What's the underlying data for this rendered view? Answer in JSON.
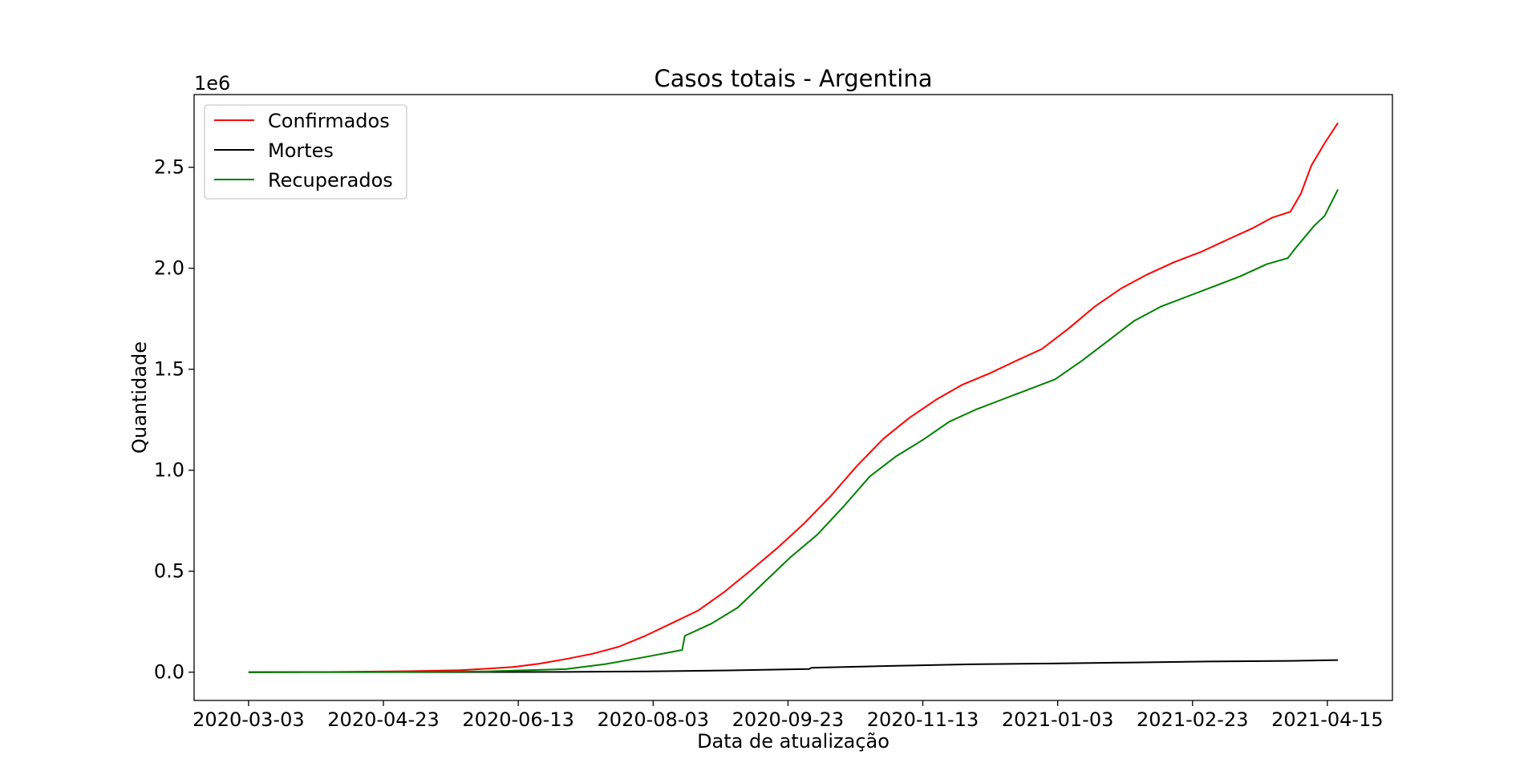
{
  "chart_data": {
    "type": "line",
    "title": "Casos totais - Argentina",
    "xlabel": "Data de atualização",
    "ylabel": "Quantidade",
    "y_offset_text": "1e6",
    "x_start": "2020-03-03",
    "x_end": "2021-04-19",
    "x_ticks": [
      "2020-03-03",
      "2020-04-23",
      "2020-06-13",
      "2020-08-03",
      "2020-09-23",
      "2020-11-13",
      "2021-01-03",
      "2021-02-23",
      "2021-04-15"
    ],
    "y_ticks": [
      "0.0",
      "0.5",
      "1.0",
      "1.5",
      "2.0",
      "2.5"
    ],
    "ylim": [
      -0.14,
      2.86
    ],
    "grid": false,
    "legend_position": "upper-left",
    "series": [
      {
        "name": "Confirmados",
        "color": "#ff0000",
        "points": [
          [
            "2020-03-03",
            0.0
          ],
          [
            "2020-04-02",
            0.001
          ],
          [
            "2020-05-02",
            0.005
          ],
          [
            "2020-05-22",
            0.01
          ],
          [
            "2020-06-01",
            0.017
          ],
          [
            "2020-06-11",
            0.026
          ],
          [
            "2020-06-21",
            0.042
          ],
          [
            "2020-07-01",
            0.065
          ],
          [
            "2020-07-11",
            0.091
          ],
          [
            "2020-07-21",
            0.126
          ],
          [
            "2020-07-31",
            0.18
          ],
          [
            "2020-08-10",
            0.242
          ],
          [
            "2020-08-20",
            0.305
          ],
          [
            "2020-08-30",
            0.398
          ],
          [
            "2020-09-09",
            0.505
          ],
          [
            "2020-09-19",
            0.615
          ],
          [
            "2020-09-29",
            0.735
          ],
          [
            "2020-10-09",
            0.87
          ],
          [
            "2020-10-19",
            1.02
          ],
          [
            "2020-10-29",
            1.155
          ],
          [
            "2020-11-08",
            1.26
          ],
          [
            "2020-11-18",
            1.349
          ],
          [
            "2020-11-28",
            1.424
          ],
          [
            "2020-12-08",
            1.478
          ],
          [
            "2020-12-18",
            1.54
          ],
          [
            "2020-12-28",
            1.6
          ],
          [
            "2021-01-07",
            1.7
          ],
          [
            "2021-01-17",
            1.81
          ],
          [
            "2021-01-27",
            1.9
          ],
          [
            "2021-02-06",
            1.97
          ],
          [
            "2021-02-16",
            2.03
          ],
          [
            "2021-02-26",
            2.08
          ],
          [
            "2021-03-08",
            2.14
          ],
          [
            "2021-03-18",
            2.2
          ],
          [
            "2021-03-25",
            2.25
          ],
          [
            "2021-04-01",
            2.28
          ],
          [
            "2021-04-05",
            2.37
          ],
          [
            "2021-04-09",
            2.51
          ],
          [
            "2021-04-14",
            2.62
          ],
          [
            "2021-04-19",
            2.72
          ]
        ]
      },
      {
        "name": "Mortes",
        "color": "#000000",
        "points": [
          [
            "2020-03-03",
            0.0
          ],
          [
            "2020-05-02",
            0.0003
          ],
          [
            "2020-07-01",
            0.0012
          ],
          [
            "2020-08-01",
            0.004
          ],
          [
            "2020-09-01",
            0.009
          ],
          [
            "2020-10-01",
            0.016
          ],
          [
            "2020-10-02",
            0.022
          ],
          [
            "2020-11-01",
            0.031
          ],
          [
            "2020-12-01",
            0.039
          ],
          [
            "2021-01-01",
            0.043
          ],
          [
            "2021-02-01",
            0.048
          ],
          [
            "2021-03-01",
            0.053
          ],
          [
            "2021-04-01",
            0.056
          ],
          [
            "2021-04-19",
            0.06
          ]
        ]
      },
      {
        "name": "Recuperados",
        "color": "#008000",
        "points": [
          [
            "2020-03-03",
            0.0
          ],
          [
            "2020-05-02",
            0.001
          ],
          [
            "2020-06-01",
            0.004
          ],
          [
            "2020-07-01",
            0.015
          ],
          [
            "2020-07-16",
            0.04
          ],
          [
            "2020-07-31",
            0.075
          ],
          [
            "2020-08-10",
            0.1
          ],
          [
            "2020-08-14",
            0.11
          ],
          [
            "2020-08-15",
            0.18
          ],
          [
            "2020-08-25",
            0.24
          ],
          [
            "2020-09-04",
            0.32
          ],
          [
            "2020-09-14",
            0.445
          ],
          [
            "2020-09-24",
            0.57
          ],
          [
            "2020-10-04",
            0.68
          ],
          [
            "2020-10-14",
            0.82
          ],
          [
            "2020-10-24",
            0.97
          ],
          [
            "2020-11-03",
            1.07
          ],
          [
            "2020-11-13",
            1.15
          ],
          [
            "2020-11-23",
            1.24
          ],
          [
            "2020-12-03",
            1.3
          ],
          [
            "2020-12-13",
            1.35
          ],
          [
            "2020-12-23",
            1.4
          ],
          [
            "2021-01-02",
            1.45
          ],
          [
            "2021-01-12",
            1.54
          ],
          [
            "2021-01-22",
            1.64
          ],
          [
            "2021-02-01",
            1.74
          ],
          [
            "2021-02-11",
            1.81
          ],
          [
            "2021-02-21",
            1.86
          ],
          [
            "2021-03-03",
            1.91
          ],
          [
            "2021-03-13",
            1.96
          ],
          [
            "2021-03-23",
            2.02
          ],
          [
            "2021-03-31",
            2.05
          ],
          [
            "2021-04-03",
            2.1
          ],
          [
            "2021-04-10",
            2.21
          ],
          [
            "2021-04-14",
            2.26
          ],
          [
            "2021-04-19",
            2.39
          ]
        ]
      }
    ]
  }
}
